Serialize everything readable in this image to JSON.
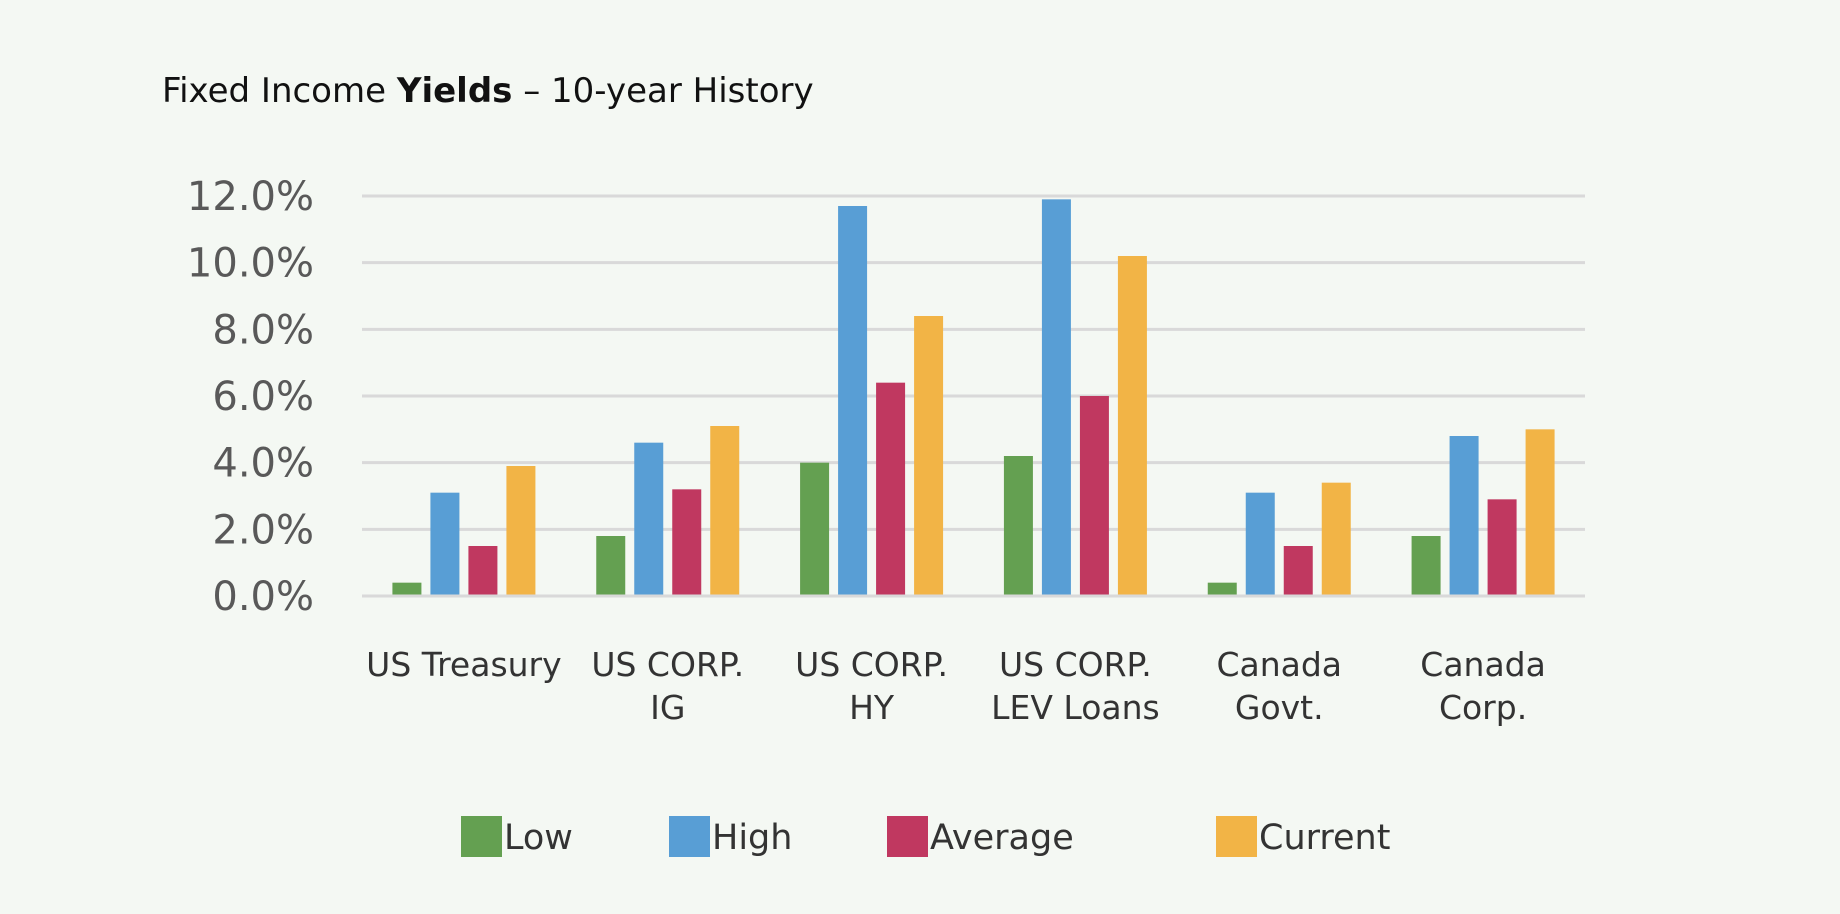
{
  "chart_data": {
    "type": "bar",
    "title_prefix": "Fixed Income ",
    "title_bold": "Yields",
    "title_suffix": " – 10-year History",
    "categories": [
      [
        "US Treasury"
      ],
      [
        "US CORP.",
        "IG"
      ],
      [
        "US CORP.",
        "HY"
      ],
      [
        "US CORP.",
        "LEV Loans"
      ],
      [
        "Canada",
        "Govt."
      ],
      [
        "Canada",
        "Corp."
      ]
    ],
    "series": [
      {
        "name": "Low",
        "color": "#64a051",
        "values": [
          0.4,
          1.8,
          4.0,
          4.2,
          0.4,
          1.8
        ]
      },
      {
        "name": "High",
        "color": "#589ed5",
        "values": [
          3.1,
          4.6,
          11.7,
          11.9,
          3.1,
          4.8
        ]
      },
      {
        "name": "Average",
        "color": "#c03860",
        "values": [
          1.5,
          3.2,
          6.4,
          6.0,
          1.5,
          2.9
        ]
      },
      {
        "name": "Current",
        "color": "#f2b446",
        "values": [
          3.9,
          5.1,
          8.4,
          10.2,
          3.4,
          5.0
        ]
      }
    ],
    "yticks": [
      "0.0%",
      "2.0%",
      "4.0%",
      "6.0%",
      "8.0%",
      "10.0%",
      "12.0%"
    ],
    "ylim": [
      0,
      12
    ],
    "grid": true,
    "legend_position": "bottom"
  }
}
